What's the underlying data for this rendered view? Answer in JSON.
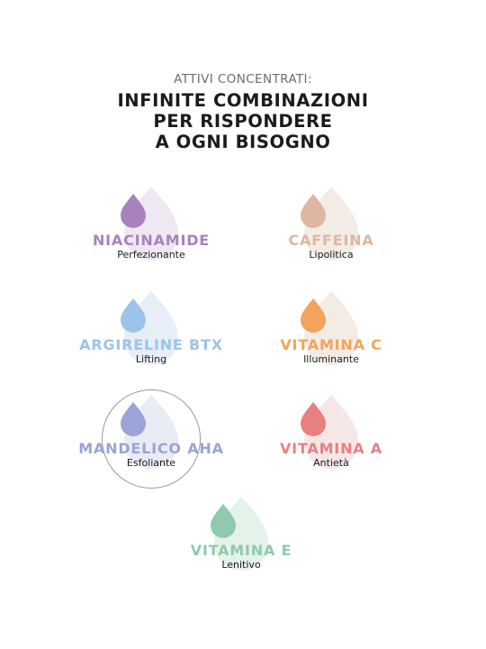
{
  "header": {
    "kicker": "ATTIVI CONCENTRATI:",
    "headline_lines": [
      "INFINITE COMBINAZIONI",
      "PER RISPONDERE",
      "A OGNI BISOGNO"
    ]
  },
  "actives": [
    {
      "name": "NIACINAMIDE",
      "benefit": "Perfezionante",
      "color": "#a882bd",
      "tint": "#eee8f3"
    },
    {
      "name": "CAFFEINA",
      "benefit": "Lipolitica",
      "color": "#ddb7a1",
      "tint": "#f3ece6"
    },
    {
      "name": "ARGIRELINE BTX",
      "benefit": "Lifting",
      "color": "#9cc4ea",
      "tint": "#e7eef7"
    },
    {
      "name": "VITAMINA C",
      "benefit": "Illuminante",
      "color": "#f2a45c",
      "tint": "#f4ebe4"
    },
    {
      "name": "MANDELICO AHA",
      "benefit": "Esfoliante",
      "color": "#9aa4d6",
      "tint": "#e9ebf5"
    },
    {
      "name": "VITAMINA A",
      "benefit": "Antietà",
      "color": "#e88080",
      "tint": "#f5e7e6"
    },
    {
      "name": "VITAMINA E",
      "benefit": "Lenitivo",
      "color": "#8fcaae",
      "tint": "#e4f2ea"
    }
  ]
}
